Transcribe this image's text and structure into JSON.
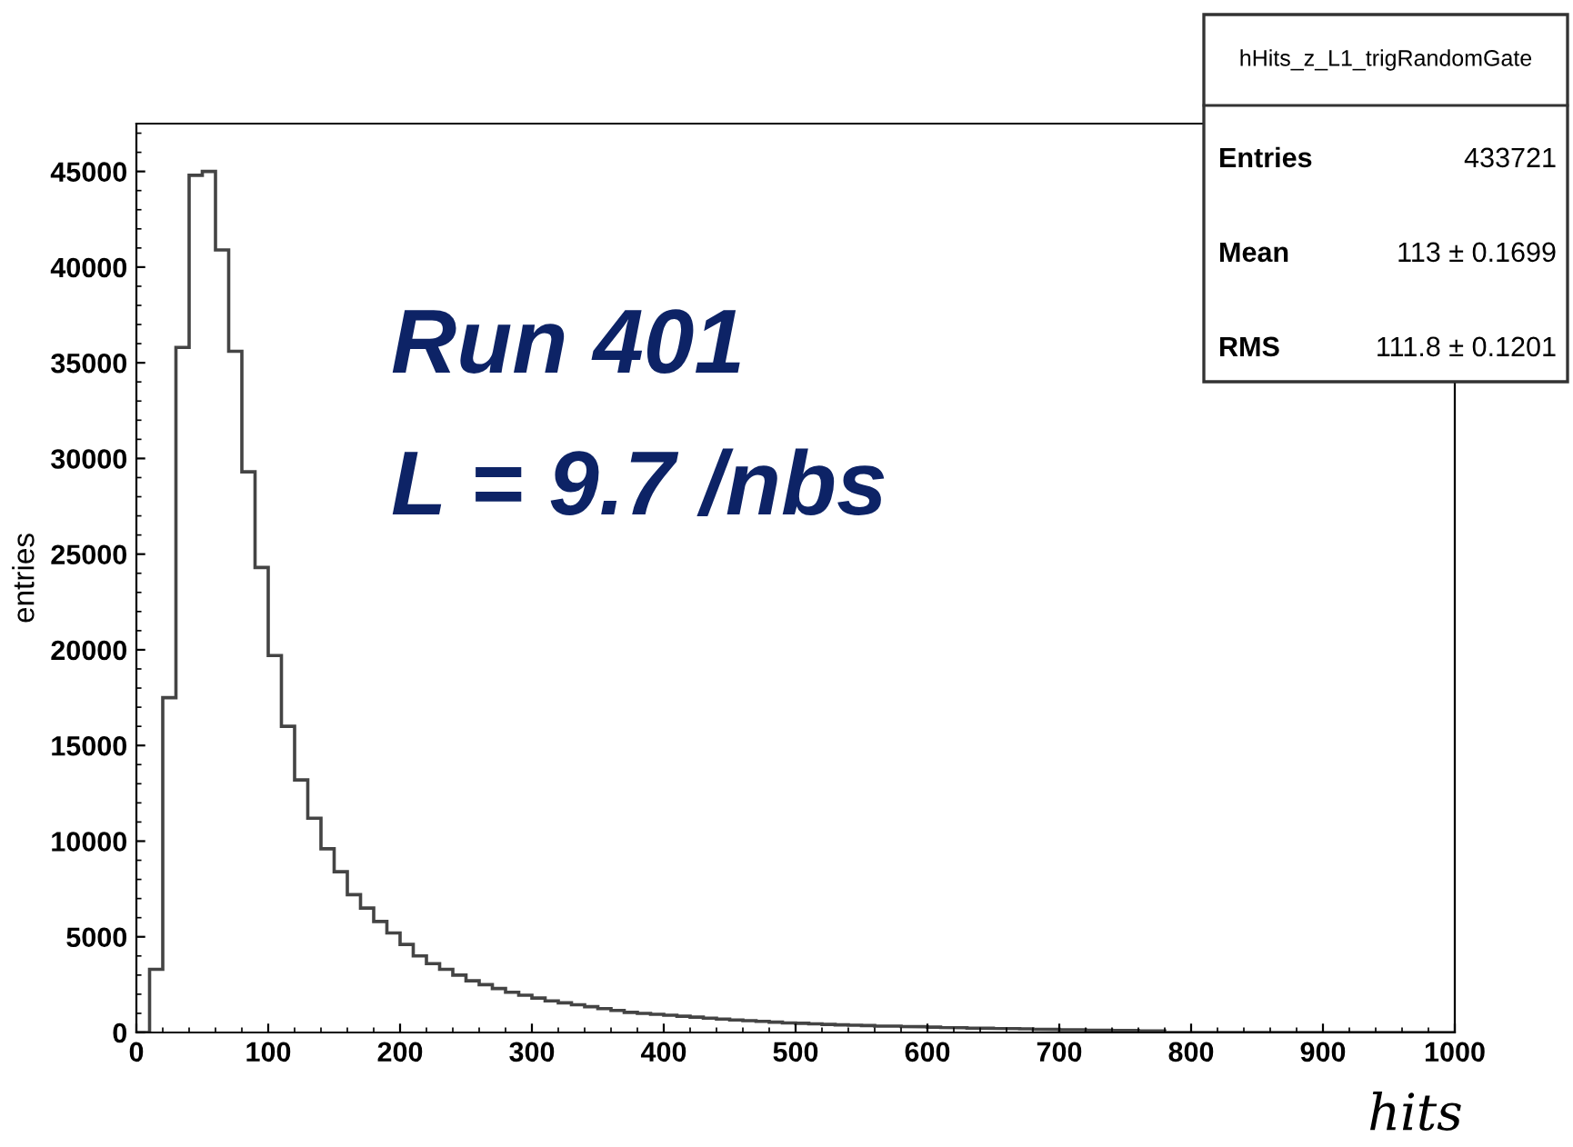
{
  "chart_data": {
    "type": "histogram",
    "xlabel": "hits",
    "ylabel": "entries",
    "bins": [
      0,
      10,
      20,
      30,
      40,
      50,
      60,
      70,
      80,
      90,
      100,
      110,
      120,
      130,
      140,
      150,
      160,
      170,
      180,
      190,
      200,
      210,
      220,
      230,
      240,
      250,
      260,
      270,
      280,
      290,
      300,
      310,
      320,
      330,
      340,
      350,
      360,
      370,
      380,
      390,
      400,
      410,
      420,
      430,
      440,
      450,
      460,
      470,
      480,
      490,
      500,
      510,
      520,
      530,
      540,
      550,
      560,
      570,
      580,
      590,
      600,
      610,
      620,
      630,
      640,
      650,
      660,
      670,
      680,
      690,
      700,
      710,
      720,
      730,
      740,
      750,
      760,
      770,
      780,
      790,
      800,
      810,
      820,
      830,
      840,
      850,
      860,
      870,
      880,
      890,
      900,
      910,
      920,
      930,
      940,
      950,
      960,
      970,
      980,
      990,
      1000
    ],
    "values": [
      0,
      3300,
      17500,
      35800,
      44800,
      45000,
      40900,
      35600,
      29300,
      24300,
      19700,
      16000,
      13200,
      11200,
      9600,
      8400,
      7200,
      6500,
      5800,
      5200,
      4600,
      4000,
      3600,
      3300,
      3000,
      2700,
      2500,
      2300,
      2100,
      1950,
      1800,
      1650,
      1550,
      1450,
      1350,
      1250,
      1150,
      1050,
      1000,
      950,
      900,
      850,
      800,
      750,
      700,
      650,
      620,
      580,
      540,
      500,
      480,
      450,
      420,
      400,
      380,
      360,
      340,
      330,
      310,
      300,
      280,
      260,
      250,
      230,
      220,
      210,
      200,
      190,
      170,
      160,
      150,
      140,
      130,
      120,
      110,
      100,
      90,
      80,
      0,
      0,
      0,
      0,
      0,
      0,
      0,
      0,
      0,
      0,
      0,
      0,
      0,
      0,
      0,
      0,
      0,
      0,
      0,
      0,
      0,
      0
    ],
    "color": "#444444",
    "xlim": [
      0,
      1000
    ],
    "xticks": [
      0,
      100,
      200,
      300,
      400,
      500,
      600,
      700,
      800,
      900,
      1000
    ],
    "ylim": [
      0,
      47500
    ],
    "yticks": [
      0,
      5000,
      10000,
      15000,
      20000,
      25000,
      30000,
      35000,
      40000,
      45000
    ],
    "grid": false,
    "annotations": [
      "Run 401",
      "L = 9.7 /nbs",
      "hHits_z_L1_trigRandomGate",
      "Entries",
      "433721",
      "Mean",
      "113 ± 0.1699",
      "RMS",
      "111.8 ± 0.1201"
    ]
  }
}
